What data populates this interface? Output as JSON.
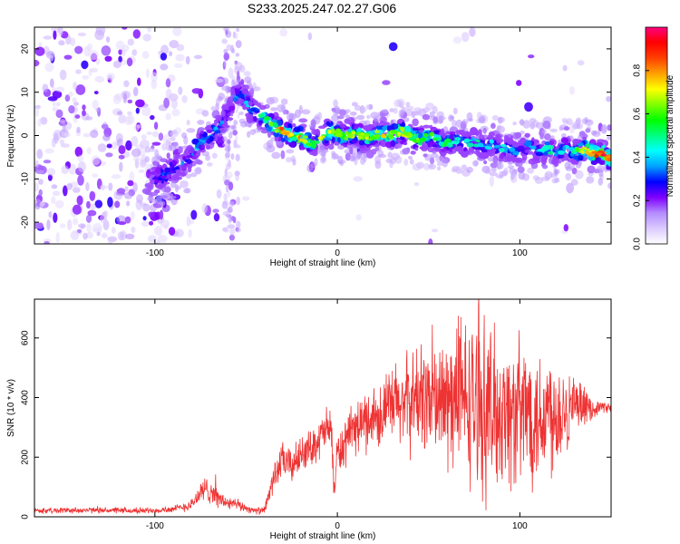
{
  "figure": {
    "title": "S233.2025.247.02.27.G06"
  },
  "chart_data": [
    {
      "type": "heatmap",
      "title": "S233.2025.247.02.27.G06",
      "xlabel": "Height of straight line (km)",
      "ylabel": "Frequency (Hz)",
      "xlim": [
        -166,
        150
      ],
      "ylim": [
        -25,
        25
      ],
      "xticks": [
        -100,
        0,
        100
      ],
      "yticks": [
        -20,
        -10,
        0,
        10,
        20
      ],
      "colorbar": {
        "label": "Normalized spectral amplitude",
        "range": [
          0.0,
          1.0
        ],
        "ticks": [
          0.0,
          0.2,
          0.4,
          0.6,
          0.8
        ],
        "colormap": [
          "#ffffff",
          "#dccbff",
          "#b48cff",
          "#8000ff",
          "#0000ff",
          "#00a0ff",
          "#00ffff",
          "#00ff80",
          "#00ff00",
          "#80ff00",
          "#ffff00",
          "#ffa000",
          "#ff4000",
          "#ff0000",
          "#ff0080"
        ]
      },
      "ridge": {
        "x": [
          -100,
          -95,
          -88,
          -82,
          -78,
          -74,
          -70,
          -65,
          -60,
          -56,
          -52,
          -48,
          -44,
          -40,
          -35,
          -30,
          -25,
          -20,
          -17,
          -14,
          -10,
          -5,
          0,
          5,
          10,
          15,
          20,
          25,
          30,
          35,
          40,
          45,
          50,
          55,
          60,
          65,
          70,
          75,
          80,
          85,
          90,
          95,
          100,
          105,
          110,
          115,
          120,
          125,
          130,
          135,
          140,
          145,
          148
        ],
        "y": [
          -10,
          -9,
          -7,
          -6,
          -3,
          -1,
          0,
          2,
          5,
          9,
          10,
          6,
          5,
          4,
          2,
          1,
          0,
          -0.5,
          -1,
          -2,
          -1,
          1,
          0.5,
          0,
          0.5,
          -0.5,
          0,
          0.5,
          0,
          1,
          0,
          -1,
          0,
          -1,
          -2,
          -1,
          -2,
          -1,
          -3,
          -2,
          -3,
          -3,
          -4,
          -2,
          -4,
          -3,
          -4,
          -3,
          -4,
          -3,
          -4,
          -4,
          -5
        ],
        "peak_amplitude": [
          0.4,
          0.45,
          0.4,
          0.35,
          0.5,
          0.5,
          0.45,
          0.4,
          0.35,
          0.4,
          0.45,
          0.5,
          0.55,
          0.6,
          0.65,
          0.85,
          0.75,
          0.8,
          0.7,
          0.6,
          0.7,
          0.75,
          0.7,
          0.65,
          0.7,
          0.75,
          0.7,
          0.75,
          0.7,
          0.75,
          0.7,
          0.65,
          0.6,
          0.55,
          0.55,
          0.5,
          0.45,
          0.5,
          0.45,
          0.4,
          0.45,
          0.4,
          0.4,
          0.45,
          0.4,
          0.5,
          0.45,
          0.55,
          0.5,
          0.85,
          0.9,
          0.95,
          0.9
        ]
      }
    },
    {
      "type": "line",
      "xlabel": "Height of straight line (km)",
      "ylabel": "SNR (10 * v/v)",
      "xlim": [
        -166,
        150
      ],
      "ylim": [
        0,
        730
      ],
      "xticks": [
        -100,
        0,
        100
      ],
      "yticks": [
        0,
        200,
        400,
        600
      ],
      "series": [
        {
          "name": "SNR",
          "color": "#ee3333",
          "x": [
            -166,
            -150,
            -130,
            -110,
            -90,
            -80,
            -75,
            -70,
            -65,
            -60,
            -55,
            -50,
            -45,
            -40,
            -35,
            -30,
            -25,
            -20,
            -15,
            -10,
            -5,
            -3,
            -2,
            0,
            5,
            10,
            15,
            20,
            25,
            30,
            35,
            40,
            45,
            50,
            55,
            60,
            65,
            70,
            75,
            80,
            85,
            90,
            95,
            100,
            105,
            110,
            115,
            120,
            125,
            130,
            135,
            140,
            145,
            150
          ],
          "y": [
            20,
            22,
            22,
            20,
            25,
            40,
            80,
            95,
            60,
            45,
            40,
            30,
            20,
            20,
            130,
            190,
            170,
            210,
            230,
            260,
            300,
            280,
            80,
            210,
            250,
            300,
            320,
            340,
            350,
            370,
            380,
            390,
            400,
            410,
            380,
            380,
            400,
            390,
            380,
            370,
            350,
            360,
            340,
            350,
            360,
            340,
            360,
            350,
            370,
            360,
            370,
            360,
            370,
            365
          ],
          "noise_amplitude": [
            10,
            10,
            10,
            10,
            12,
            20,
            40,
            50,
            30,
            25,
            20,
            15,
            10,
            15,
            50,
            60,
            60,
            60,
            60,
            70,
            80,
            80,
            30,
            80,
            80,
            90,
            100,
            110,
            120,
            140,
            150,
            170,
            180,
            200,
            220,
            240,
            260,
            270,
            280,
            300,
            280,
            260,
            250,
            260,
            250,
            240,
            230,
            200,
            160,
            120,
            60,
            30,
            20,
            15
          ]
        }
      ]
    }
  ]
}
